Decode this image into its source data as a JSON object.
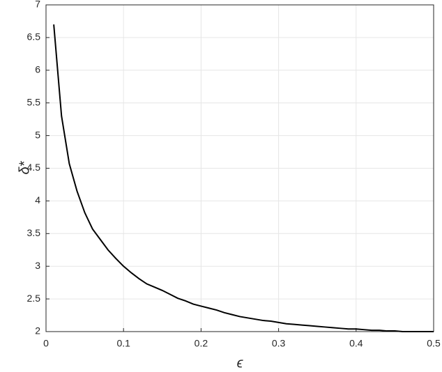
{
  "chart_data": {
    "type": "line",
    "xlabel": "ϵ",
    "ylabel": "δ*",
    "x": [
      0.01,
      0.02,
      0.03,
      0.04,
      0.05,
      0.06,
      0.07,
      0.08,
      0.09,
      0.1,
      0.11,
      0.12,
      0.13,
      0.14,
      0.15,
      0.16,
      0.17,
      0.18,
      0.19,
      0.2,
      0.21,
      0.22,
      0.23,
      0.24,
      0.25,
      0.26,
      0.27,
      0.28,
      0.29,
      0.3,
      0.31,
      0.32,
      0.33,
      0.34,
      0.35,
      0.36,
      0.37,
      0.38,
      0.39,
      0.4,
      0.41,
      0.42,
      0.43,
      0.44,
      0.45,
      0.46,
      0.47,
      0.48,
      0.49,
      0.5
    ],
    "values": [
      6.7,
      5.3,
      4.57,
      4.15,
      3.82,
      3.57,
      3.41,
      3.25,
      3.12,
      3.0,
      2.9,
      2.81,
      2.73,
      2.68,
      2.63,
      2.57,
      2.51,
      2.47,
      2.42,
      2.39,
      2.36,
      2.33,
      2.29,
      2.26,
      2.23,
      2.21,
      2.19,
      2.17,
      2.16,
      2.14,
      2.12,
      2.11,
      2.1,
      2.09,
      2.08,
      2.07,
      2.06,
      2.05,
      2.04,
      2.04,
      2.03,
      2.02,
      2.02,
      2.01,
      2.01,
      2.0,
      2.0,
      2.0,
      2.0,
      2.0
    ],
    "color": "#000000",
    "xlim": [
      0,
      0.5
    ],
    "xticks": [
      0,
      0.1,
      0.2,
      0.3,
      0.4,
      0.5
    ],
    "ylim": [
      2,
      7
    ],
    "yticks": [
      2,
      2.5,
      3,
      3.5,
      4,
      4.5,
      5,
      5.5,
      6,
      6.5,
      7
    ],
    "grid": true
  }
}
